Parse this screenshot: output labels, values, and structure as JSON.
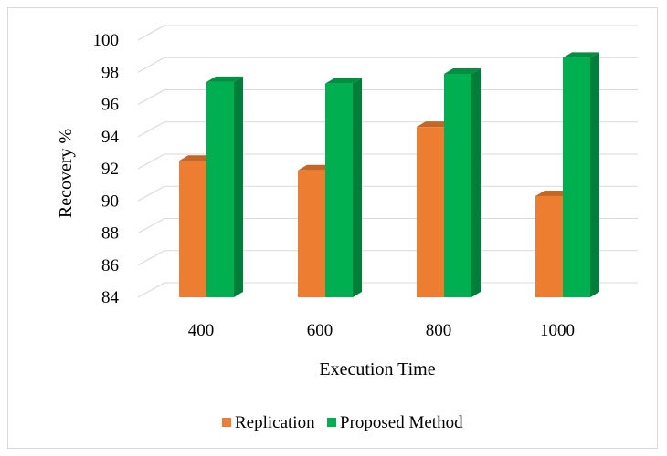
{
  "chart_data": {
    "type": "bar",
    "title": "",
    "xlabel": "Execution Time",
    "ylabel": "Recovery %",
    "categories": [
      "400",
      "600",
      "800",
      "1000"
    ],
    "series": [
      {
        "name": "Replication",
        "values": [
          92.5,
          91.9,
          94.6,
          90.3
        ],
        "color": "#ED7D31"
      },
      {
        "name": "Proposed Method",
        "values": [
          97.4,
          97.3,
          97.9,
          98.9
        ],
        "color": "#00B050"
      }
    ],
    "ylim": [
      84,
      100
    ],
    "yticks": [
      "84",
      "86",
      "88",
      "90",
      "92",
      "94",
      "96",
      "98",
      "100"
    ],
    "grid": true,
    "legend_position": "bottom",
    "style": "3d-clustered-column"
  }
}
